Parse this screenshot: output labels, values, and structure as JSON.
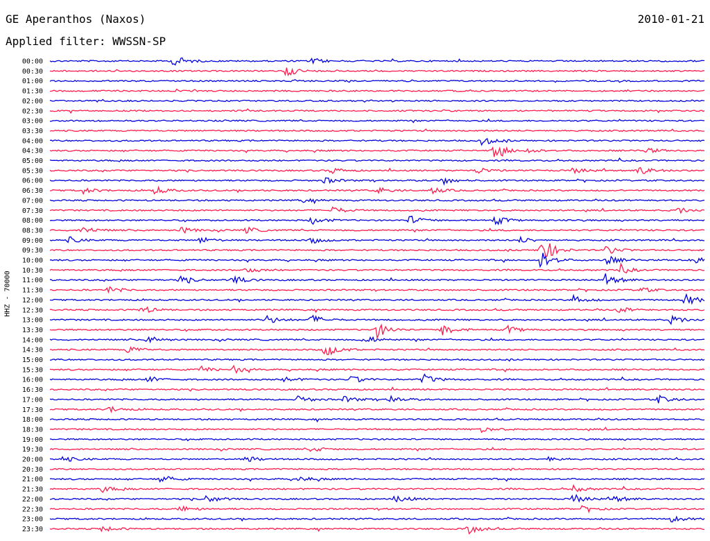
{
  "header": {
    "title": "GE Aperanthos (Naxos)",
    "date": "2010-01-21",
    "filter": "Applied filter: WWSSN-SP"
  },
  "chart_data": {
    "type": "line",
    "ylabel": "HHZ - 70000",
    "colors": {
      "even": "#0000dd",
      "odd": "#ff1a4b"
    },
    "rows": [
      {
        "label": "00:00",
        "events": [
          [
            0.19,
            4
          ],
          [
            0.4,
            2
          ]
        ]
      },
      {
        "label": "00:30",
        "events": [
          [
            0.36,
            3.5
          ]
        ]
      },
      {
        "label": "01:00",
        "events": []
      },
      {
        "label": "01:30",
        "events": []
      },
      {
        "label": "02:00",
        "events": []
      },
      {
        "label": "02:30",
        "events": []
      },
      {
        "label": "03:00",
        "events": []
      },
      {
        "label": "03:30",
        "events": []
      },
      {
        "label": "04:00",
        "events": [
          [
            0.66,
            3
          ]
        ]
      },
      {
        "label": "04:30",
        "events": [
          [
            0.68,
            5
          ],
          [
            0.73,
            1.5
          ],
          [
            0.91,
            2
          ]
        ]
      },
      {
        "label": "05:00",
        "events": []
      },
      {
        "label": "05:30",
        "events": [
          [
            0.43,
            2
          ],
          [
            0.65,
            2.5
          ],
          [
            0.8,
            2
          ],
          [
            0.9,
            3
          ]
        ]
      },
      {
        "label": "06:00",
        "events": [
          [
            0.42,
            2
          ],
          [
            0.6,
            2.5
          ]
        ]
      },
      {
        "label": "06:30",
        "events": [
          [
            0.05,
            2
          ],
          [
            0.16,
            2.5
          ],
          [
            0.5,
            2
          ],
          [
            0.58,
            2.5
          ]
        ]
      },
      {
        "label": "07:00",
        "events": [
          [
            0.38,
            1.5
          ]
        ]
      },
      {
        "label": "07:30",
        "events": [
          [
            0.43,
            2.5
          ],
          [
            0.96,
            2
          ]
        ]
      },
      {
        "label": "08:00",
        "events": [
          [
            0.4,
            2.5
          ],
          [
            0.55,
            3
          ],
          [
            0.68,
            3
          ]
        ]
      },
      {
        "label": "08:30",
        "events": [
          [
            0.05,
            2.5
          ],
          [
            0.2,
            2
          ],
          [
            0.3,
            2
          ]
        ]
      },
      {
        "label": "09:00",
        "events": [
          [
            0.03,
            2
          ],
          [
            0.23,
            2
          ],
          [
            0.4,
            2
          ],
          [
            0.72,
            2
          ]
        ]
      },
      {
        "label": "09:30",
        "events": [
          [
            0.75,
            10
          ],
          [
            0.85,
            3
          ]
        ]
      },
      {
        "label": "10:00",
        "events": [
          [
            0.75,
            6
          ],
          [
            0.85,
            3
          ],
          [
            0.98,
            3
          ]
        ]
      },
      {
        "label": "10:30",
        "events": [
          [
            0.3,
            2
          ],
          [
            0.87,
            3
          ]
        ]
      },
      {
        "label": "11:00",
        "events": [
          [
            0.2,
            2.5
          ],
          [
            0.28,
            2.5
          ],
          [
            0.85,
            4
          ]
        ]
      },
      {
        "label": "11:30",
        "events": [
          [
            0.09,
            2
          ],
          [
            0.9,
            2
          ]
        ]
      },
      {
        "label": "12:00",
        "events": [
          [
            0.8,
            3
          ],
          [
            0.97,
            4
          ]
        ]
      },
      {
        "label": "12:30",
        "events": [
          [
            0.14,
            2.5
          ],
          [
            0.87,
            2
          ]
        ]
      },
      {
        "label": "13:00",
        "events": [
          [
            0.33,
            3
          ],
          [
            0.4,
            3
          ],
          [
            0.95,
            3
          ]
        ]
      },
      {
        "label": "13:30",
        "events": [
          [
            0.5,
            5
          ],
          [
            0.6,
            4
          ],
          [
            0.7,
            2.5
          ]
        ]
      },
      {
        "label": "14:00",
        "events": [
          [
            0.15,
            2.5
          ],
          [
            0.48,
            3
          ]
        ]
      },
      {
        "label": "14:30",
        "events": [
          [
            0.12,
            2.5
          ],
          [
            0.42,
            5
          ]
        ]
      },
      {
        "label": "15:00",
        "events": []
      },
      {
        "label": "15:30",
        "events": [
          [
            0.23,
            2
          ],
          [
            0.28,
            2.5
          ]
        ]
      },
      {
        "label": "16:00",
        "events": [
          [
            0.15,
            2
          ],
          [
            0.36,
            2
          ],
          [
            0.46,
            2.5
          ],
          [
            0.57,
            3.5
          ]
        ]
      },
      {
        "label": "16:30",
        "events": []
      },
      {
        "label": "17:00",
        "events": [
          [
            0.38,
            2.5
          ],
          [
            0.45,
            2
          ],
          [
            0.52,
            2.5
          ],
          [
            0.93,
            2.5
          ]
        ]
      },
      {
        "label": "17:30",
        "events": [
          [
            0.09,
            2
          ]
        ]
      },
      {
        "label": "18:00",
        "events": []
      },
      {
        "label": "18:30",
        "events": [
          [
            0.66,
            2
          ]
        ]
      },
      {
        "label": "19:00",
        "events": []
      },
      {
        "label": "19:30",
        "events": [
          [
            0.4,
            2
          ]
        ]
      },
      {
        "label": "20:00",
        "events": [
          [
            0.02,
            2
          ],
          [
            0.3,
            2
          ],
          [
            0.76,
            2
          ]
        ]
      },
      {
        "label": "20:30",
        "events": []
      },
      {
        "label": "21:00",
        "events": [
          [
            0.17,
            2.5
          ],
          [
            0.38,
            2
          ]
        ]
      },
      {
        "label": "21:30",
        "events": [
          [
            0.08,
            2
          ],
          [
            0.8,
            2
          ]
        ]
      },
      {
        "label": "22:00",
        "events": [
          [
            0.24,
            2.5
          ],
          [
            0.53,
            2.5
          ],
          [
            0.8,
            3
          ],
          [
            0.86,
            2.5
          ]
        ]
      },
      {
        "label": "22:30",
        "events": [
          [
            0.2,
            2
          ],
          [
            0.81,
            2.5
          ]
        ]
      },
      {
        "label": "23:00",
        "events": [
          [
            0.95,
            2
          ]
        ]
      },
      {
        "label": "23:30",
        "events": [
          [
            0.08,
            2
          ],
          [
            0.64,
            3
          ]
        ]
      }
    ]
  }
}
